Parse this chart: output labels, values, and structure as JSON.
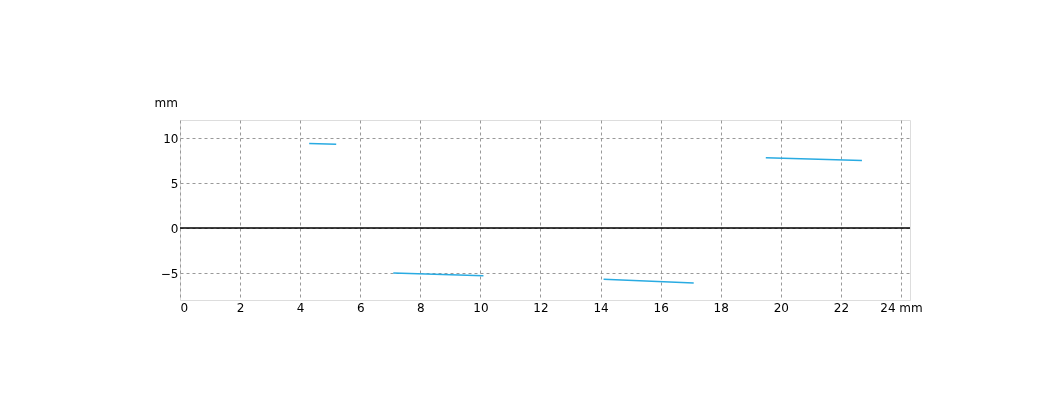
{
  "chart_data": {
    "type": "line",
    "ylabel": "mm",
    "series": [
      {
        "color": "#29abe2",
        "x": [
          4.3,
          5.2
        ],
        "values": [
          9.4,
          9.3
        ]
      },
      {
        "color": "#29abe2",
        "x": [
          7.1,
          10.1
        ],
        "values": [
          -5.0,
          -5.3
        ]
      },
      {
        "color": "#29abe2",
        "x": [
          14.1,
          17.1
        ],
        "values": [
          -5.7,
          -6.1
        ]
      },
      {
        "color": "#29abe2",
        "x": [
          19.5,
          22.7
        ],
        "values": [
          7.8,
          7.5
        ]
      }
    ],
    "xlim": [
      0,
      24.3
    ],
    "ylim": [
      -8,
      12
    ],
    "xticks": [
      0,
      2,
      4,
      6,
      8,
      10,
      12,
      14,
      16,
      18,
      20,
      22,
      {
        "value": 24,
        "label": "24 mm"
      }
    ],
    "yticks": [
      -5,
      0,
      5,
      10
    ],
    "ref_lines": [
      {
        "axis": "y",
        "value": 0,
        "color": "#000000",
        "line_style": "solid"
      }
    ],
    "grid": true,
    "marker": "none",
    "line_style": "solid"
  }
}
